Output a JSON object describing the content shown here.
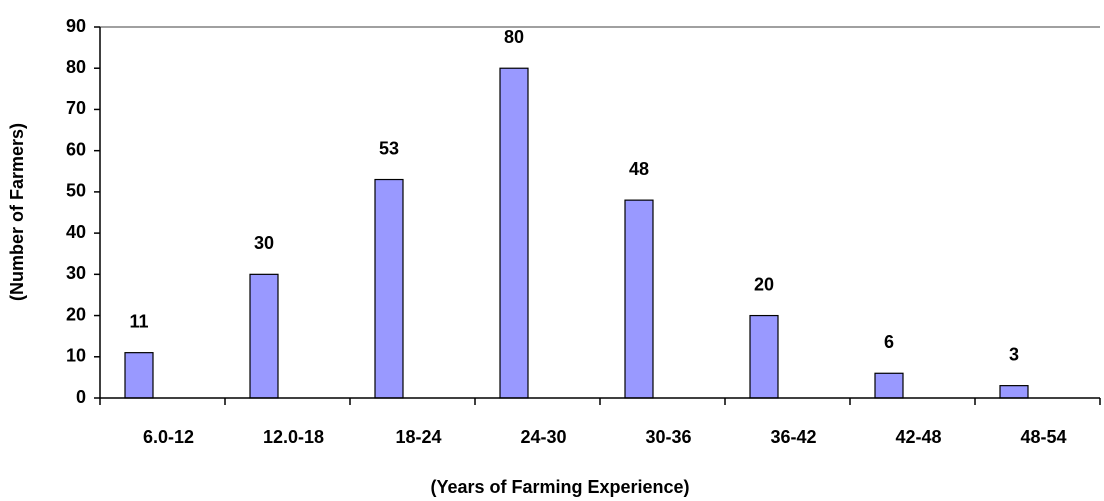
{
  "chart_data": {
    "type": "bar",
    "xlabel": "(Years of Farming Experience)",
    "ylabel": "(Number of Farmers)",
    "categories": [
      "6.0-12",
      "12.0-18",
      "18-24",
      "24-30",
      "30-36",
      "36-42",
      "42-48",
      "48-54"
    ],
    "values": [
      11,
      30,
      53,
      80,
      48,
      20,
      6,
      3
    ],
    "color": "#9999ff",
    "ylim": [
      0,
      90
    ],
    "yticks": [
      0,
      10,
      20,
      30,
      40,
      50,
      60,
      70,
      80,
      90
    ],
    "grid": false
  }
}
